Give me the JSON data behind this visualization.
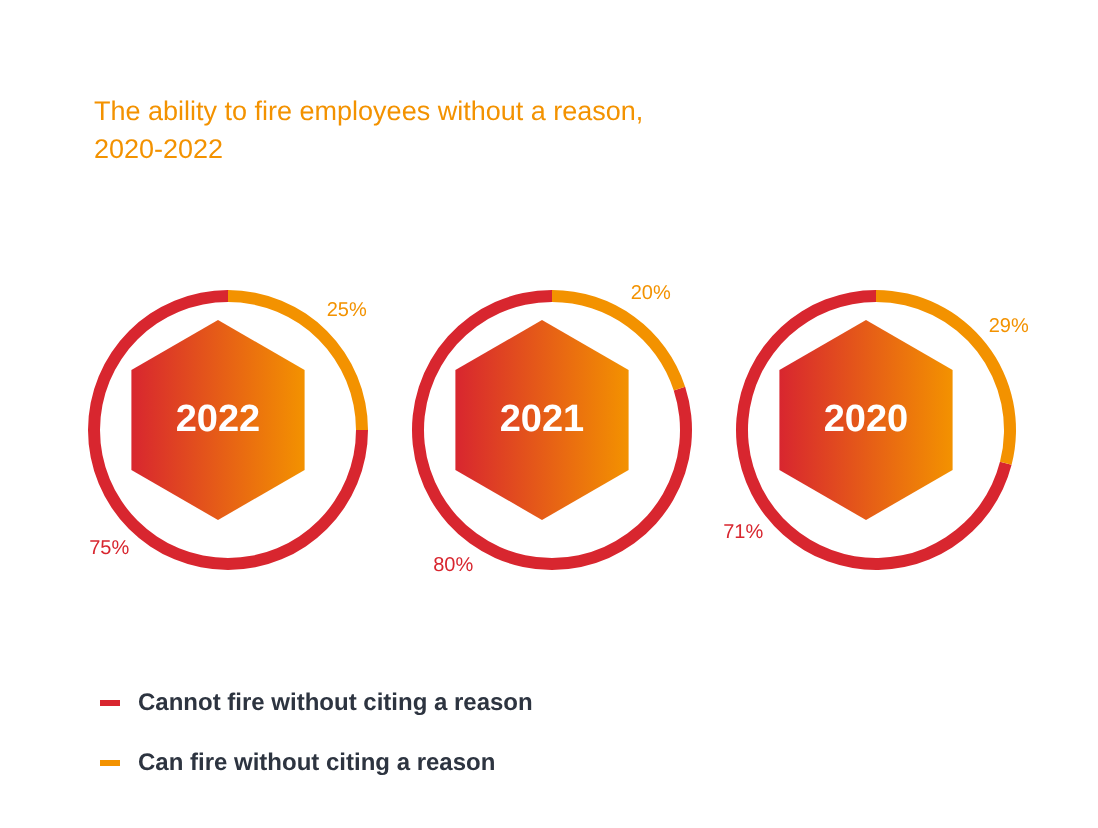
{
  "chart_data": [
    {
      "type": "donut",
      "title": "2022",
      "annotations": [
        "The ability to fire employees without a reason, 2020-2022"
      ],
      "categories": [
        "Cannot fire without citing a reason",
        "Can fire without citing a reason"
      ],
      "values": [
        75,
        25
      ],
      "value_labels": [
        "75%",
        "25%"
      ],
      "colors": [
        "#d8262f",
        "#f39200"
      ],
      "legend": "bottom"
    },
    {
      "type": "donut",
      "title": "2021",
      "categories": [
        null,
        null
      ],
      "values": [
        80,
        20
      ],
      "value_labels": [
        "80%",
        "20%"
      ],
      "colors": [
        "#d8262f",
        "#f39200"
      ]
    },
    {
      "type": "donut",
      "title": "2020",
      "categories": [
        null,
        null
      ],
      "values": [
        71,
        29
      ],
      "value_labels": [
        "71%",
        "29%"
      ],
      "colors": [
        "#d8262f",
        "#f39200"
      ]
    }
  ]
}
